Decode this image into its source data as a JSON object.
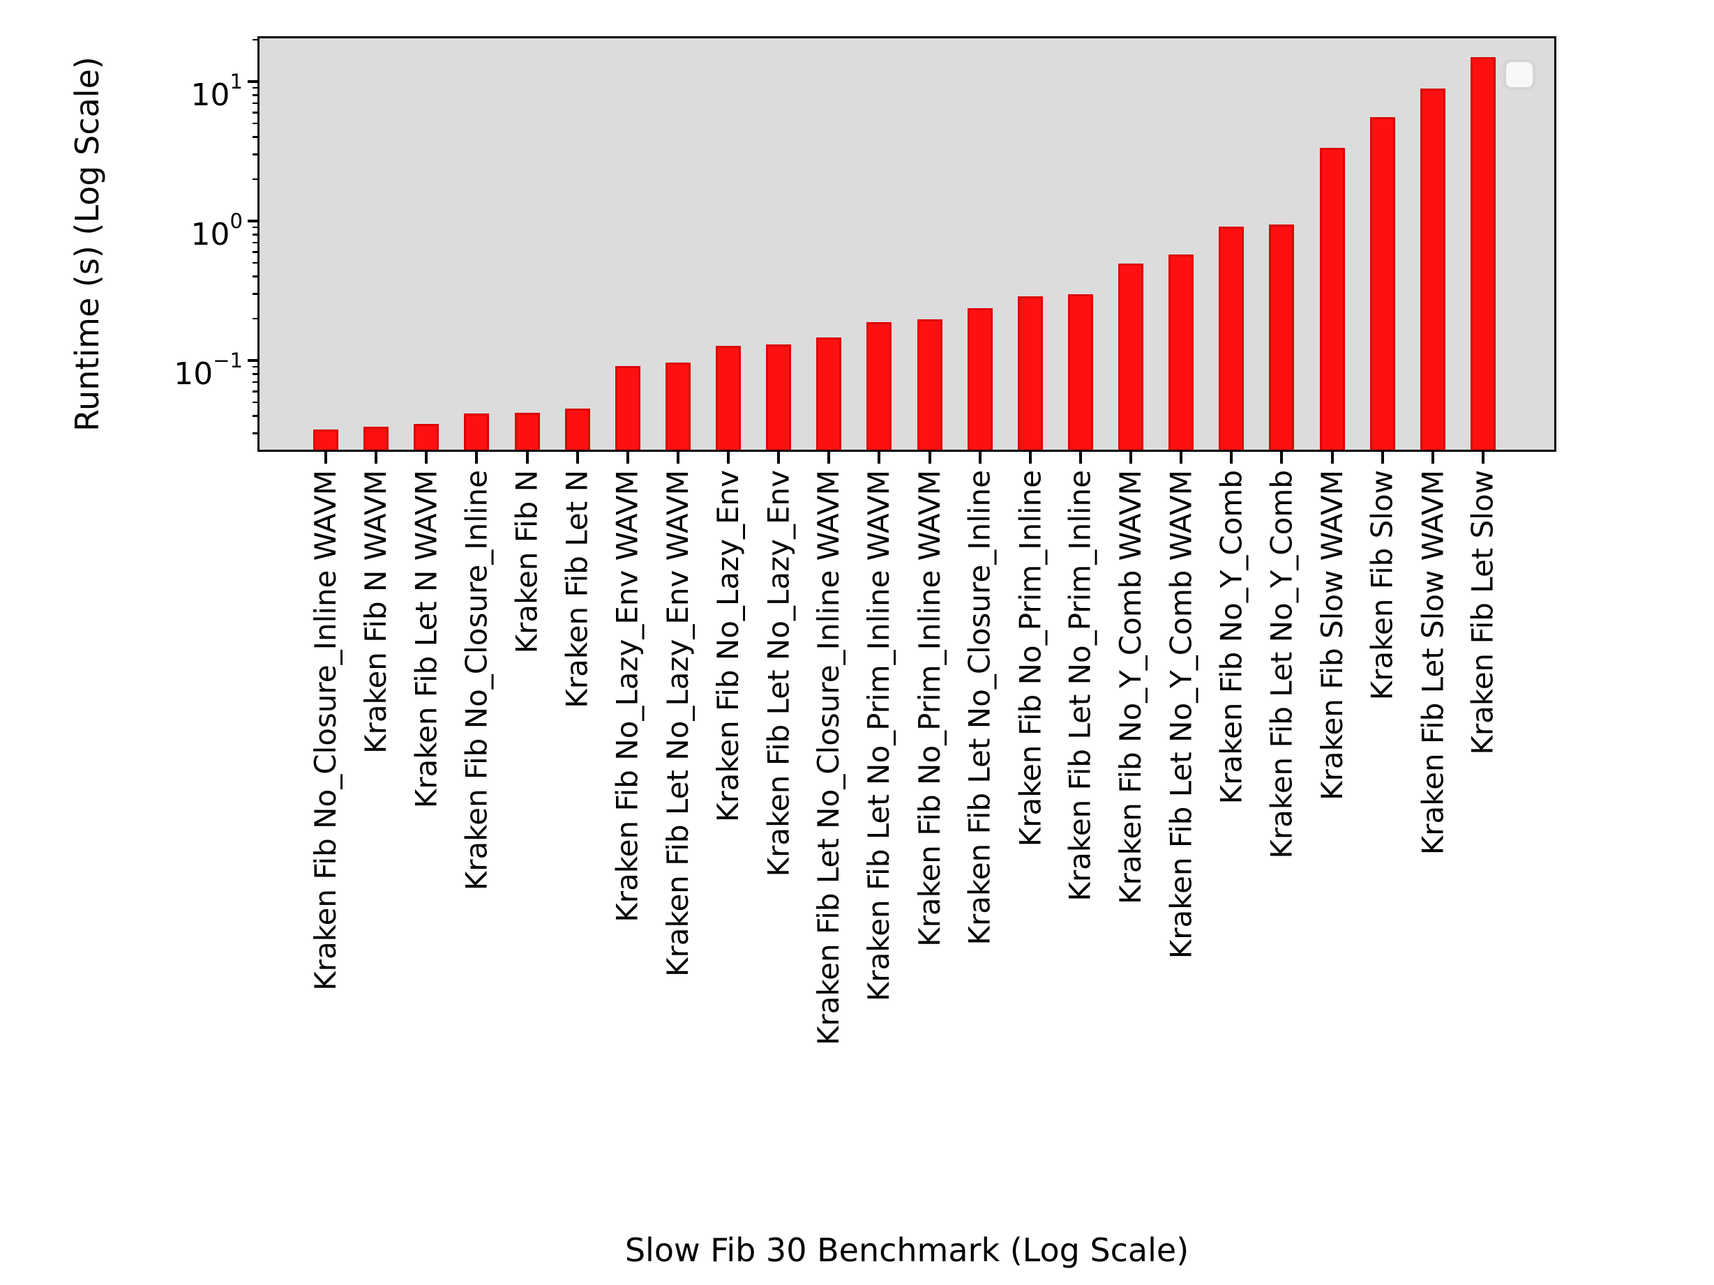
{
  "chart_data": {
    "type": "bar",
    "title": "",
    "xlabel": "Slow Fib 30 Benchmark (Log Scale)",
    "ylabel": "Runtime (s) (Log Scale)",
    "yscale": "log",
    "ylim": [
      0.023,
      20.4
    ],
    "grid": false,
    "legend": {
      "visible": true,
      "entries": [],
      "position": "upper right"
    },
    "plot_background": "#dcdcdc",
    "bar_color": "#ff1010",
    "bar_edge_color": "#dd0404",
    "categories": [
      "Kraken Fib No_Closure_Inline WAVM",
      "Kraken Fib N WAVM",
      "Kraken Fib Let N WAVM",
      "Kraken Fib No_Closure_Inline",
      "Kraken Fib N",
      "Kraken Fib Let N",
      "Kraken Fib No_Lazy_Env WAVM",
      "Kraken Fib Let No_Lazy_Env WAVM",
      "Kraken Fib No_Lazy_Env",
      "Kraken Fib Let No_Lazy_Env",
      "Kraken Fib Let No_Closure_Inline WAVM",
      "Kraken Fib Let No_Prim_Inline WAVM",
      "Kraken Fib No_Prim_Inline WAVM",
      "Kraken Fib Let No_Closure_Inline",
      "Kraken Fib No_Prim_Inline",
      "Kraken Fib Let No_Prim_Inline",
      "Kraken Fib No_Y_Comb WAVM",
      "Kraken Fib Let No_Y_Comb WAVM",
      "Kraken Fib No_Y_Comb",
      "Kraken Fib Let No_Y_Comb",
      "Kraken Fib Slow WAVM",
      "Kraken Fib Slow",
      "Kraken Fib Let Slow WAVM",
      "Kraken Fib Let Slow"
    ],
    "values": [
      0.032,
      0.0335,
      0.035,
      0.0415,
      0.042,
      0.045,
      0.091,
      0.097,
      0.128,
      0.13,
      0.147,
      0.188,
      0.198,
      0.238,
      0.288,
      0.3,
      0.497,
      0.575,
      0.91,
      0.94,
      3.36,
      5.54,
      8.9,
      15.0
    ],
    "y_ticks": [
      {
        "base": "10",
        "exp": "1",
        "value": 10
      },
      {
        "base": "10",
        "exp": "0",
        "value": 1
      },
      {
        "base": "10",
        "exp": "−1",
        "value": 0.1
      }
    ]
  }
}
